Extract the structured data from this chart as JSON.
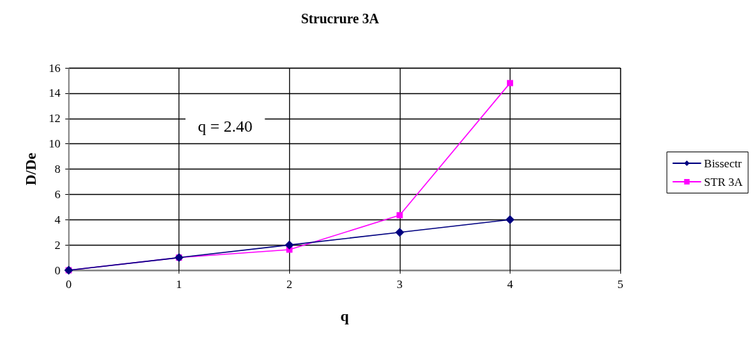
{
  "chart_data": {
    "type": "line",
    "title": "Strucrure 3A",
    "xlabel": "q",
    "ylabel": "D/De",
    "x": [
      0,
      1,
      2,
      3,
      4
    ],
    "series": [
      {
        "name": "Bissectr",
        "color": "#000080",
        "marker": "diamond",
        "values": [
          0,
          1,
          2,
          3,
          4
        ]
      },
      {
        "name": "STR 3A",
        "color": "#ff00ff",
        "marker": "square",
        "values": [
          0,
          1,
          1.63,
          4.35,
          14.8
        ]
      }
    ],
    "xlim": [
      0,
      5
    ],
    "xticks": [
      0,
      1,
      2,
      3,
      4,
      5
    ],
    "ylim": [
      0,
      16
    ],
    "yticks": [
      0,
      2,
      4,
      6,
      8,
      10,
      12,
      14,
      16
    ],
    "grid": true,
    "legend": "right",
    "annotations": [
      "q = 2.40"
    ]
  }
}
